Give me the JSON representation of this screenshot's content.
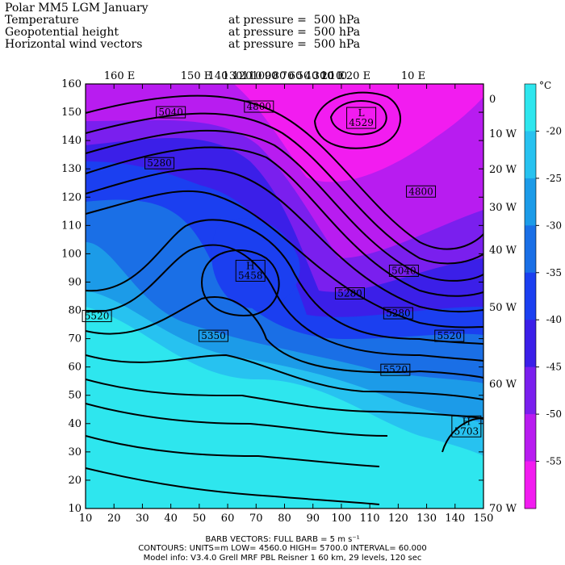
{
  "title": "Polar MM5 LGM January",
  "fields": [
    {
      "name": "Temperature",
      "level": "at pressure =  500 hPa"
    },
    {
      "name": "Geopotential height",
      "level": "at pressure =  500 hPa"
    },
    {
      "name": "Horizontal wind vectors",
      "level": "at pressure =  500 hPa"
    }
  ],
  "map": {
    "x_ticks": [
      "10",
      "20",
      "30",
      "40",
      "50",
      "60",
      "70",
      "80",
      "90",
      "100",
      "110",
      "120",
      "130",
      "140",
      "150"
    ],
    "y_ticks": [
      "10",
      "20",
      "30",
      "40",
      "50",
      "60",
      "70",
      "80",
      "90",
      "100",
      "110",
      "120",
      "130",
      "140",
      "150",
      "160"
    ],
    "top_lon_labels": [
      "160  E",
      "150  E",
      "140",
      "130",
      "120",
      "110",
      "100",
      "90",
      "80",
      "70",
      "60",
      "50",
      "40",
      "30",
      "20",
      "10",
      "0",
      "10 E",
      "20  E",
      "10  E"
    ],
    "right_lon_labels": [
      "0",
      "10  W",
      "20  W",
      "30  W",
      "40  W",
      "50  W",
      "60  W",
      "70  W"
    ],
    "contour_labels": [
      {
        "text": "4800",
        "x": 71,
        "y": 152
      },
      {
        "text": "5040",
        "x": 40,
        "y": 150
      },
      {
        "text": "L\n4529",
        "x": 107,
        "y": 148
      },
      {
        "text": "5280",
        "x": 36,
        "y": 132
      },
      {
        "text": "4800",
        "x": 128,
        "y": 122
      },
      {
        "text": "H\n5458",
        "x": 68,
        "y": 94
      },
      {
        "text": "5040",
        "x": 122,
        "y": 94
      },
      {
        "text": "5280",
        "x": 103,
        "y": 86
      },
      {
        "text": "5520",
        "x": 14,
        "y": 78
      },
      {
        "text": "5280",
        "x": 120,
        "y": 79
      },
      {
        "text": "5350",
        "x": 55,
        "y": 71
      },
      {
        "text": "5520",
        "x": 138,
        "y": 71
      },
      {
        "text": "5520",
        "x": 119,
        "y": 59
      },
      {
        "text": "H\n5703",
        "x": 144,
        "y": 39
      }
    ],
    "lows": [
      {
        "label": "L",
        "value": "4529"
      }
    ],
    "highs": [
      {
        "label": "H",
        "value": "5458"
      },
      {
        "label": "H",
        "value": "5703"
      }
    ]
  },
  "colorbar": {
    "unit": "°C",
    "labels": [
      "-20",
      "-25",
      "-30",
      "-35",
      "-40",
      "-45",
      "-50",
      "-55"
    ],
    "colors": [
      "#2ee6ee",
      "#27c2f0",
      "#1c9be8",
      "#1a6fe6",
      "#1b3ff0",
      "#3b1fe8",
      "#7a1fee",
      "#b81cf0",
      "#f21cf0"
    ]
  },
  "footer": {
    "line1": "BARB VECTORS:  FULL BARB = 5 m s⁻¹",
    "line2": "CONTOURS:  UNITS=m   LOW=  4560.0      HIGH=  5700.0      INTERVAL=    60.000",
    "line3": "Model info: V3.4.0   Grell      MRF PBL      Reisner 1      60 km,   29 levels,   120 sec"
  }
}
